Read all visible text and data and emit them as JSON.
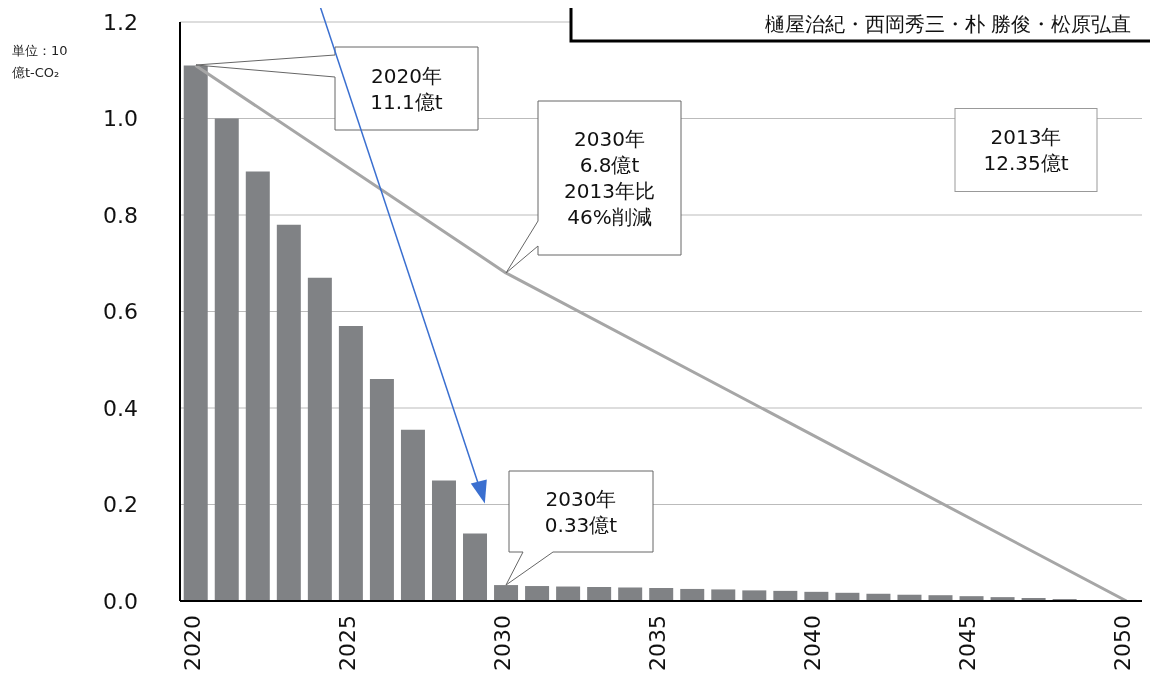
{
  "chart_data": {
    "type": "bar",
    "ylabel": "単位：10\n億t-CO₂",
    "categories": [
      "2020",
      null,
      null,
      null,
      null,
      "2025",
      null,
      null,
      null,
      null,
      "2030",
      null,
      null,
      null,
      null,
      "2035",
      null,
      null,
      null,
      null,
      "2040",
      null,
      null,
      null,
      null,
      "2045",
      null,
      null,
      null,
      null,
      "2050"
    ],
    "series": [
      {
        "color": "#808285",
        "values": [
          1.11,
          1.0,
          0.89,
          0.78,
          0.67,
          0.57,
          0.46,
          0.355,
          0.25,
          0.14,
          0.033,
          0.031,
          0.03,
          0.029,
          0.028,
          0.027,
          0.025,
          0.024,
          0.022,
          0.021,
          0.019,
          0.017,
          0.015,
          0.013,
          0.012,
          0.01,
          0.008,
          0.006,
          0.004,
          null,
          0
        ]
      },
      {
        "type": "line",
        "color": "#a6a6a6",
        "values": [
          1.11,
          null,
          null,
          null,
          null,
          null,
          null,
          null,
          null,
          null,
          0.68,
          null,
          null,
          null,
          null,
          null,
          null,
          null,
          null,
          null,
          null,
          null,
          null,
          null,
          null,
          null,
          null,
          null,
          null,
          null,
          0
        ]
      }
    ],
    "ylim": [
      0,
      1.2
    ],
    "yticks": [
      {
        "value": 0,
        "label": "0.0"
      },
      {
        "value": 0.2,
        "label": "0.2"
      },
      {
        "value": 0.4,
        "label": "0.4"
      },
      {
        "value": 0.6,
        "label": "0.6"
      },
      {
        "value": 0.8,
        "label": "0.8"
      },
      {
        "value": 1,
        "label": "1.0"
      },
      {
        "value": 1.2,
        "label": "1.2"
      }
    ],
    "grid": "y",
    "annotations": [
      "2020年\n11.1億t",
      "2030年\n6.8億t\n2013年比\n46%削減",
      "2030年\n0.33億t",
      "2013年\n12.35億t",
      "樋屋治紀・西岡秀三・朴 勝俊・松原弘直"
    ]
  }
}
